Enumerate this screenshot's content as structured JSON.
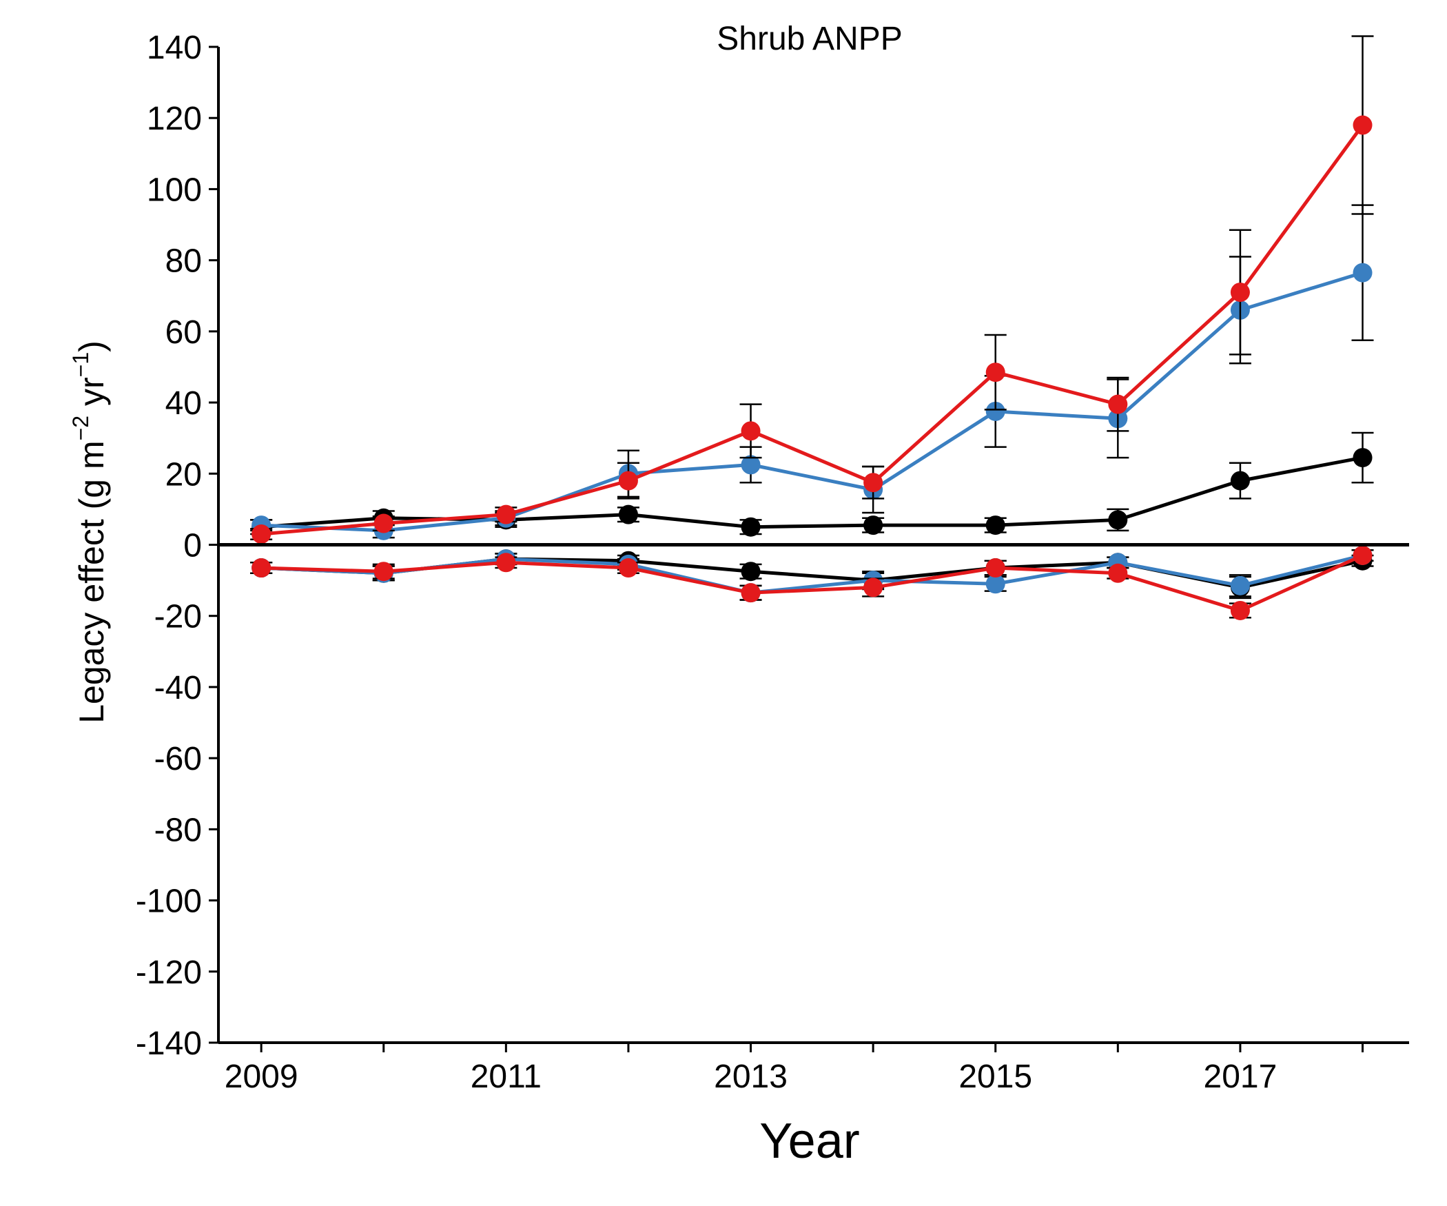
{
  "chart_data": {
    "type": "line",
    "title": "Shrub ANPP",
    "xlabel": "Year",
    "ylabel": {
      "main": "Legacy effect (g",
      "unit_m": "m",
      "sup_m": "−2",
      "unit_yr": "yr",
      "sup_yr": "−1",
      "close": ")"
    },
    "x": [
      2009,
      2010,
      2011,
      2012,
      2013,
      2014,
      2015,
      2016,
      2017,
      2018
    ],
    "x_tick_labels": [
      "2009",
      "2011",
      "2013",
      "2015",
      "2017"
    ],
    "x_tick_values": [
      2009,
      2010,
      2011,
      2012,
      2013,
      2014,
      2015,
      2016,
      2017,
      2018
    ],
    "ylim": [
      -140,
      140
    ],
    "y_ticks": [
      140,
      120,
      100,
      80,
      60,
      40,
      20,
      0,
      -20,
      -40,
      -60,
      -80,
      -100,
      -120,
      -140
    ],
    "grid": false,
    "zero_line": true,
    "series": [
      {
        "color": "#000000",
        "group": "positive",
        "values": [
          5,
          7.5,
          7,
          8.5,
          5,
          5.5,
          5.5,
          7,
          18,
          24.5
        ],
        "errors": [
          2,
          2,
          2,
          2,
          2,
          2,
          2,
          3,
          5,
          7
        ]
      },
      {
        "color": "#3a7fc1",
        "group": "positive",
        "values": [
          5.5,
          4,
          7.5,
          20,
          22.5,
          15.5,
          37.5,
          35.5,
          66,
          76.5
        ],
        "errors": [
          1.5,
          2,
          2,
          6.5,
          5,
          6.5,
          10,
          11,
          15,
          19
        ]
      },
      {
        "color": "#e31a1c",
        "group": "positive",
        "values": [
          3,
          6,
          8.5,
          18,
          32,
          17.5,
          48.5,
          39.5,
          71,
          118
        ],
        "errors": [
          1.5,
          2,
          2,
          5,
          7.5,
          4.5,
          10.5,
          7.5,
          17.5,
          25
        ]
      },
      {
        "color": "#000000",
        "group": "negative",
        "values": [
          -6.5,
          -8,
          -4,
          -4.5,
          -7.5,
          -10,
          -6.5,
          -5,
          -12,
          -4.5
        ],
        "errors": [
          1.5,
          2,
          1.5,
          1.5,
          2,
          2,
          2,
          1.5,
          3,
          1.5
        ]
      },
      {
        "color": "#3a7fc1",
        "group": "negative",
        "values": [
          -6.5,
          -8,
          -4,
          -5.5,
          -13.5,
          -10,
          -11,
          -5,
          -11.5,
          -3
        ],
        "errors": [
          1.5,
          2,
          1.5,
          1.5,
          2,
          2.5,
          2,
          1.5,
          3,
          1.5
        ]
      },
      {
        "color": "#e31a1c",
        "group": "negative",
        "values": [
          -6.5,
          -7.5,
          -5,
          -6.5,
          -13.5,
          -12,
          -6.5,
          -8,
          -18.5,
          -3
        ],
        "errors": [
          1.5,
          2,
          1.5,
          1.5,
          2,
          2.5,
          2,
          1.5,
          2,
          1.5
        ]
      }
    ]
  }
}
